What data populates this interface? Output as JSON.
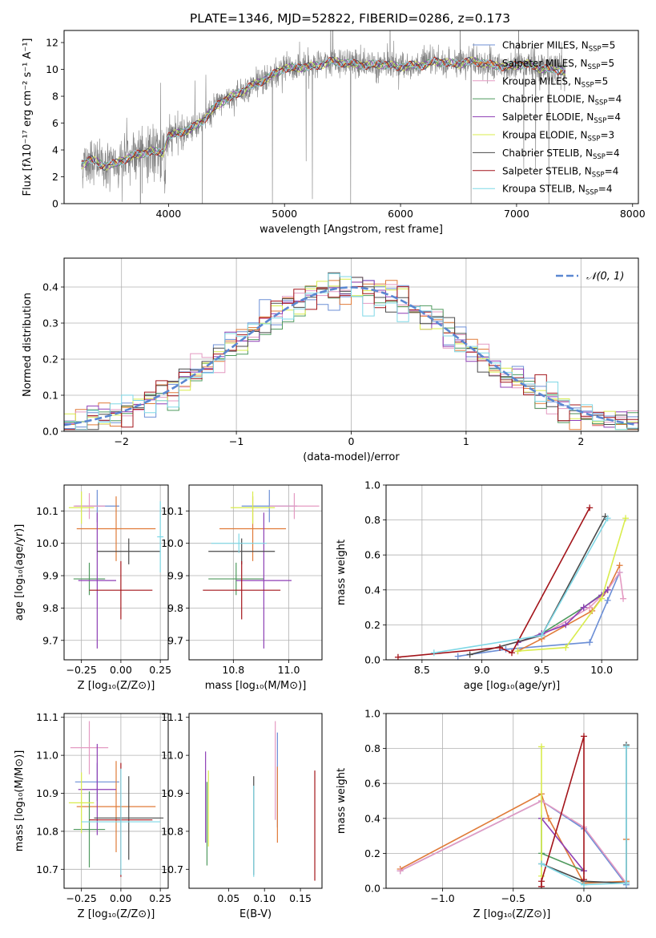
{
  "figure": {
    "title": "PLATE=1346, MJD=52822, FIBERID=0286, z=0.173"
  },
  "models": [
    {
      "name": "Chabrier MILES",
      "nssp": "5",
      "color": "#6c8fd6"
    },
    {
      "name": "Salpeter MILES",
      "nssp": "5",
      "color": "#e07b39"
    },
    {
      "name": "Kroupa MILES",
      "nssp": "5",
      "color": "#e49ac2"
    },
    {
      "name": "Chabrier ELODIE",
      "nssp": "4",
      "color": "#4f9a5e"
    },
    {
      "name": "Salpeter ELODIE",
      "nssp": "4",
      "color": "#8e3fb5"
    },
    {
      "name": "Kroupa ELODIE",
      "nssp": "3",
      "color": "#d9ec4c"
    },
    {
      "name": "Chabrier STELIB",
      "nssp": "4",
      "color": "#4a4a4a"
    },
    {
      "name": "Salpeter STELIB",
      "nssp": "4",
      "color": "#a3141a"
    },
    {
      "name": "Kroupa STELIB",
      "nssp": "4",
      "color": "#7fd8e6"
    }
  ],
  "chart_data": [
    {
      "id": "spectrum",
      "type": "line",
      "xlabel": "wavelength [Angstrom, rest frame]",
      "ylabel": "Flux [fλ10⁻¹⁷ erg cm⁻² s⁻¹ A⁻¹]",
      "xlim": [
        3100,
        8050
      ],
      "ylim": [
        0,
        12.9
      ],
      "xticks": [
        4000,
        5000,
        6000,
        7000,
        8000
      ],
      "yticks": [
        0,
        2,
        4,
        6,
        8,
        10,
        12
      ],
      "data_color": "#808080",
      "data_extent": [
        3250,
        7420
      ],
      "anchors": {
        "x": [
          3250,
          3330,
          3450,
          3550,
          3700,
          3850,
          3950,
          4000,
          4100,
          4200,
          4300,
          4400,
          4500,
          4600,
          4700,
          4800,
          4900,
          5000,
          5100,
          5200,
          5300,
          5400,
          5500,
          5600,
          5700,
          5800,
          5900,
          6000,
          6100,
          6200,
          6300,
          6400,
          6500,
          6600,
          6700,
          6800,
          6900,
          7000,
          7100,
          7200,
          7300,
          7420
        ],
        "y": [
          2.9,
          3.3,
          2.8,
          3.0,
          3.6,
          3.9,
          3.8,
          5.0,
          5.3,
          5.6,
          6.2,
          7.2,
          7.8,
          8.2,
          8.7,
          9.1,
          9.6,
          10.1,
          10.1,
          10.2,
          10.3,
          10.6,
          10.5,
          10.4,
          10.3,
          10.4,
          10.3,
          10.2,
          10.3,
          10.3,
          10.6,
          10.5,
          10.4,
          10.6,
          10.5,
          10.3,
          10.2,
          10.3,
          10.4,
          10.1,
          10.0,
          9.9
        ]
      },
      "legend_position": "right",
      "series": [
        "Chabrier MILES",
        "Salpeter MILES",
        "Kroupa MILES",
        "Chabrier ELODIE",
        "Salpeter ELODIE",
        "Kroupa ELODIE",
        "Chabrier STELIB",
        "Salpeter STELIB",
        "Kroupa STELIB"
      ]
    },
    {
      "id": "residuals",
      "type": "histogram",
      "xlabel": "(data-model)/error",
      "ylabel": "Normed distribution",
      "xlim": [
        -2.5,
        2.5
      ],
      "ylim": [
        0,
        0.48
      ],
      "xticks": [
        -2,
        -1,
        0,
        1,
        2
      ],
      "yticks": [
        0.0,
        0.1,
        0.2,
        0.3,
        0.4
      ],
      "grid": true,
      "bin_width": 0.1,
      "reference": {
        "label": "𝒩(0, 1)",
        "mean": 0,
        "sigma": 1,
        "color": "#5b87d1",
        "legend_position": "top-right"
      }
    },
    {
      "id": "age-vs-Z",
      "type": "errorbar",
      "xlabel": "Z [log₁₀(Z/Z⊙)]",
      "ylabel": "age  [log₁₀(age/yr)]",
      "xlim": [
        -0.36,
        0.3
      ],
      "ylim": [
        9.64,
        10.18
      ],
      "xticks": [
        -0.25,
        0.0,
        0.25
      ],
      "yticks": [
        9.7,
        9.8,
        9.9,
        10.0,
        10.1
      ],
      "grid": true,
      "points": [
        {
          "model": "Chabrier MILES",
          "x": -0.15,
          "y": 10.115,
          "x_err": 0.14,
          "y_err": 0.05
        },
        {
          "model": "Salpeter MILES",
          "x": -0.03,
          "y": 10.045,
          "x_err": 0.25,
          "y_err": 0.1
        },
        {
          "model": "Kroupa MILES",
          "x": -0.2,
          "y": 10.115,
          "x_err": 0.1,
          "y_err": 0.04
        },
        {
          "model": "Chabrier ELODIE",
          "x": -0.2,
          "y": 9.89,
          "x_err": 0.1,
          "y_err": 0.05
        },
        {
          "model": "Salpeter ELODIE",
          "x": -0.15,
          "y": 9.885,
          "x_err": 0.12,
          "y_err": 0.21
        },
        {
          "model": "Kroupa ELODIE",
          "x": -0.25,
          "y": 10.11,
          "x_err": 0.08,
          "y_err": 0.05
        },
        {
          "model": "Chabrier STELIB",
          "x": 0.05,
          "y": 9.975,
          "x_err": 0.2,
          "y_err": 0.04
        },
        {
          "model": "Salpeter STELIB",
          "x": 0.0,
          "y": 9.855,
          "x_err": 0.2,
          "y_err": 0.09
        },
        {
          "model": "Kroupa STELIB",
          "x": 0.25,
          "y": 10.02,
          "x_err": 0.02,
          "y_err": 0.11
        }
      ]
    },
    {
      "id": "age-vs-mass",
      "type": "errorbar",
      "xlabel": "mass [log₁₀(M/M⊙)]",
      "ylabel": "",
      "xlim": [
        10.64,
        11.12
      ],
      "ylim": [
        9.64,
        10.18
      ],
      "xticks": [
        10.8,
        11.0
      ],
      "yticks": [
        9.7,
        9.8,
        9.9,
        10.0,
        10.1
      ],
      "grid": true,
      "points": [
        {
          "model": "Chabrier MILES",
          "x": 10.93,
          "y": 10.115,
          "x_err": 0.1,
          "y_err": 0.05
        },
        {
          "model": "Salpeter MILES",
          "x": 10.87,
          "y": 10.045,
          "x_err": 0.12,
          "y_err": 0.1
        },
        {
          "model": "Kroupa MILES",
          "x": 11.02,
          "y": 10.115,
          "x_err": 0.09,
          "y_err": 0.04
        },
        {
          "model": "Chabrier ELODIE",
          "x": 10.81,
          "y": 9.89,
          "x_err": 0.1,
          "y_err": 0.05
        },
        {
          "model": "Salpeter ELODIE",
          "x": 10.91,
          "y": 9.885,
          "x_err": 0.1,
          "y_err": 0.21
        },
        {
          "model": "Kroupa ELODIE",
          "x": 10.87,
          "y": 10.11,
          "x_err": 0.08,
          "y_err": 0.05
        },
        {
          "model": "Chabrier STELIB",
          "x": 10.83,
          "y": 9.975,
          "x_err": 0.12,
          "y_err": 0.04
        },
        {
          "model": "Salpeter STELIB",
          "x": 10.83,
          "y": 9.855,
          "x_err": 0.14,
          "y_err": 0.09
        },
        {
          "model": "Kroupa STELIB",
          "x": 10.82,
          "y": 10.0,
          "x_err": 0.1,
          "y_err": 0.03
        }
      ]
    },
    {
      "id": "weight-vs-age",
      "type": "line",
      "xlabel": "age  [log₁₀(age/yr)]",
      "ylabel": "mass weight",
      "xlim": [
        8.2,
        10.3
      ],
      "ylim": [
        0,
        1.0
      ],
      "xticks": [
        8.5,
        9.0,
        9.5,
        10.0
      ],
      "yticks": [
        0.0,
        0.2,
        0.4,
        0.6,
        0.8,
        1.0
      ],
      "grid": true,
      "series": [
        {
          "name": "Chabrier MILES",
          "x": [
            8.8,
            9.2,
            9.9,
            10.05,
            10.15
          ],
          "y": [
            0.02,
            0.06,
            0.1,
            0.34,
            0.5
          ]
        },
        {
          "name": "Salpeter MILES",
          "x": [
            9.3,
            9.5,
            9.92,
            10.05,
            10.15
          ],
          "y": [
            0.05,
            0.12,
            0.28,
            0.4,
            0.54
          ]
        },
        {
          "name": "Kroupa MILES",
          "x": [
            9.3,
            9.5,
            9.9,
            10.05,
            10.15,
            10.18
          ],
          "y": [
            0.1,
            0.14,
            0.3,
            0.4,
            0.5,
            0.35
          ]
        },
        {
          "name": "Chabrier ELODIE",
          "x": [
            9.3,
            9.5,
            9.85,
            10.05
          ],
          "y": [
            0.1,
            0.15,
            0.3,
            0.4
          ]
        },
        {
          "name": "Salpeter ELODIE",
          "x": [
            9.3,
            9.5,
            9.7,
            9.85,
            10.0,
            10.05
          ],
          "y": [
            0.1,
            0.15,
            0.2,
            0.3,
            0.37,
            0.4
          ]
        },
        {
          "name": "Kroupa ELODIE",
          "x": [
            9.3,
            9.7,
            10.0,
            10.2
          ],
          "y": [
            0.05,
            0.07,
            0.35,
            0.81
          ]
        },
        {
          "name": "Chabrier STELIB",
          "x": [
            8.9,
            9.5,
            10.03
          ],
          "y": [
            0.03,
            0.14,
            0.82
          ]
        },
        {
          "name": "Salpeter STELIB",
          "x": [
            8.3,
            9.15,
            9.25,
            9.9
          ],
          "y": [
            0.015,
            0.07,
            0.04,
            0.87
          ]
        },
        {
          "name": "Kroupa STELIB",
          "x": [
            8.6,
            9.5,
            10.05
          ],
          "y": [
            0.04,
            0.14,
            0.81
          ]
        }
      ]
    },
    {
      "id": "mass-vs-Z",
      "type": "errorbar",
      "xlabel": "Z [log₁₀(Z/Z⊙)]",
      "ylabel": "mass [log₁₀(M/M⊙)]",
      "xlim": [
        -0.36,
        0.3
      ],
      "ylim": [
        10.65,
        11.11
      ],
      "xticks": [
        -0.25,
        0.0,
        0.25
      ],
      "yticks": [
        10.7,
        10.8,
        10.9,
        11.0,
        11.1
      ],
      "grid": true,
      "points": [
        {
          "model": "Chabrier MILES",
          "x": -0.15,
          "y": 10.93,
          "x_err": 0.14,
          "y_err": 0.05
        },
        {
          "model": "Salpeter MILES",
          "x": -0.03,
          "y": 10.865,
          "x_err": 0.25,
          "y_err": 0.12
        },
        {
          "model": "Kroupa MILES",
          "x": -0.2,
          "y": 11.02,
          "x_err": 0.12,
          "y_err": 0.07
        },
        {
          "model": "Chabrier ELODIE",
          "x": -0.2,
          "y": 10.805,
          "x_err": 0.1,
          "y_err": 0.1
        },
        {
          "model": "Salpeter ELODIE",
          "x": -0.15,
          "y": 10.91,
          "x_err": 0.12,
          "y_err": 0.12
        },
        {
          "model": "Kroupa ELODIE",
          "x": -0.25,
          "y": 10.875,
          "x_err": 0.08,
          "y_err": 0.08
        },
        {
          "model": "Chabrier STELIB",
          "x": 0.05,
          "y": 10.835,
          "x_err": 0.22,
          "y_err": 0.11
        },
        {
          "model": "Salpeter STELIB",
          "x": 0.0,
          "y": 10.83,
          "x_err": 0.2,
          "y_err": 0.15
        },
        {
          "model": "Kroupa STELIB",
          "x": 0.0,
          "y": 10.825,
          "x_err": 0.25,
          "y_err": 0.14
        }
      ]
    },
    {
      "id": "mass-vs-ebv",
      "type": "errorbar",
      "xlabel": "E(B-V)",
      "ylabel": "",
      "xlim": [
        -0.005,
        0.18
      ],
      "ylim": [
        10.65,
        11.11
      ],
      "xticks": [
        0.05,
        0.1,
        0.15
      ],
      "yticks": [
        10.7,
        10.8,
        10.9,
        11.0,
        11.1
      ],
      "grid": false,
      "points": [
        {
          "model": "Chabrier MILES",
          "x": 0.118,
          "y": 10.935,
          "x_err": 0.0,
          "y_err": 0.125
        },
        {
          "model": "Salpeter MILES",
          "x": 0.118,
          "y": 10.87,
          "x_err": 0.0,
          "y_err": 0.1
        },
        {
          "model": "Kroupa MILES",
          "x": 0.115,
          "y": 10.96,
          "x_err": 0.0,
          "y_err": 0.13
        },
        {
          "model": "Chabrier ELODIE",
          "x": 0.02,
          "y": 10.82,
          "x_err": 0.0,
          "y_err": 0.11
        },
        {
          "model": "Salpeter ELODIE",
          "x": 0.018,
          "y": 10.89,
          "x_err": 0.0,
          "y_err": 0.12
        },
        {
          "model": "Kroupa ELODIE",
          "x": 0.022,
          "y": 10.86,
          "x_err": 0.0,
          "y_err": 0.1
        },
        {
          "model": "Chabrier STELIB",
          "x": 0.085,
          "y": 10.815,
          "x_err": 0.0,
          "y_err": 0.13
        },
        {
          "model": "Salpeter STELIB",
          "x": 0.17,
          "y": 10.815,
          "x_err": 0.0,
          "y_err": 0.145
        },
        {
          "model": "Kroupa STELIB",
          "x": 0.085,
          "y": 10.8,
          "x_err": 0.0,
          "y_err": 0.12
        }
      ]
    },
    {
      "id": "weight-vs-Z",
      "type": "line",
      "xlabel": "Z [log₁₀(Z/Z⊙)]",
      "ylabel": "mass weight",
      "xlim": [
        -1.4,
        0.38
      ],
      "ylim": [
        0,
        1.0
      ],
      "xticks": [
        -1.0,
        -0.5,
        0.0
      ],
      "yticks": [
        0.0,
        0.2,
        0.4,
        0.6,
        0.8,
        1.0
      ],
      "grid": true,
      "series": [
        {
          "name": "Chabrier MILES",
          "x": [
            -1.3,
            -0.3,
            0.0,
            0.3
          ],
          "y": [
            0.1,
            0.5,
            0.34,
            0.02
          ]
        },
        {
          "name": "Salpeter MILES",
          "x": [
            -1.3,
            -0.3,
            -0.25,
            0.0,
            0.3,
            0.3
          ],
          "y": [
            0.11,
            0.54,
            0.4,
            0.03,
            0.04,
            0.28
          ]
        },
        {
          "name": "Kroupa MILES",
          "x": [
            -1.3,
            -0.3,
            0.0,
            0.3
          ],
          "y": [
            0.1,
            0.5,
            0.35,
            0.03
          ]
        },
        {
          "name": "Chabrier ELODIE",
          "x": [
            -0.3,
            -0.3,
            0.0
          ],
          "y": [
            0.4,
            0.2,
            0.1
          ]
        },
        {
          "name": "Salpeter ELODIE",
          "x": [
            -0.3,
            0.0
          ],
          "y": [
            0.4,
            0.1
          ]
        },
        {
          "name": "Kroupa ELODIE",
          "x": [
            -0.3,
            -0.3
          ],
          "y": [
            0.81,
            0.07
          ]
        },
        {
          "name": "Chabrier STELIB",
          "x": [
            -0.3,
            0.0,
            0.3,
            0.3
          ],
          "y": [
            0.14,
            0.04,
            0.03,
            0.82
          ]
        },
        {
          "name": "Salpeter STELIB",
          "x": [
            -0.3,
            -0.3,
            0.0,
            0.0
          ],
          "y": [
            0.01,
            0.04,
            0.87,
            0.05
          ]
        },
        {
          "name": "Kroupa STELIB",
          "x": [
            -0.3,
            0.0,
            0.3,
            0.3
          ],
          "y": [
            0.14,
            0.02,
            0.03,
            0.81
          ]
        }
      ]
    }
  ]
}
